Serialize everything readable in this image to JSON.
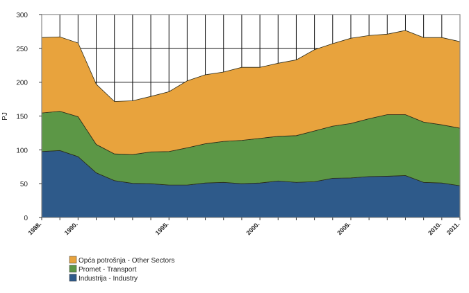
{
  "chart_data": {
    "type": "area",
    "stacked": true,
    "title": "",
    "xlabel": "",
    "ylabel": "PJ",
    "ylim": [
      0,
      300
    ],
    "yticks": [
      0,
      50,
      100,
      150,
      200,
      250,
      300
    ],
    "grid": true,
    "legend_position": "bottom-left",
    "x": [
      1988,
      1989,
      1990,
      1991,
      1992,
      1993,
      1994,
      1995,
      1996,
      1997,
      1998,
      1999,
      2000,
      2001,
      2002,
      2003,
      2004,
      2005,
      2006,
      2007,
      2008,
      2009,
      2010,
      2011
    ],
    "xtick_labels": [
      {
        "year": 1988,
        "label": "1988."
      },
      {
        "year": 1990,
        "label": "1990."
      },
      {
        "year": 1995,
        "label": "1995."
      },
      {
        "year": 2000,
        "label": "2000."
      },
      {
        "year": 2005,
        "label": "2005."
      },
      {
        "year": 2010,
        "label": "2010."
      },
      {
        "year": 2011,
        "label": "2011."
      }
    ],
    "series": [
      {
        "name": "Industrija - Industry",
        "color": "#2E5A8A",
        "values": [
          97.5,
          99,
          90,
          66,
          54.5,
          50.5,
          50,
          48,
          48,
          51,
          52,
          50,
          51,
          54,
          52,
          53,
          58,
          58.5,
          60.5,
          61,
          62,
          52,
          51,
          47
        ]
      },
      {
        "name": "Promet - Transport",
        "color": "#5C9746",
        "values": [
          57,
          58,
          59,
          42,
          39.5,
          42.5,
          47,
          49.5,
          55,
          58,
          60.5,
          64,
          66,
          66,
          69,
          75,
          77,
          80.5,
          85.5,
          91,
          90,
          89,
          86,
          85
        ]
      },
      {
        "name": "Opća potrošnja - Other Sectors",
        "color": "#E8A33D",
        "values": [
          111.5,
          110,
          109,
          89,
          77.5,
          79.5,
          82,
          88.5,
          99,
          102,
          102.5,
          108,
          105,
          108,
          112,
          120,
          122,
          126,
          123,
          119,
          124.5,
          125,
          129,
          128
        ]
      }
    ],
    "legend_order": [
      2,
      1,
      0
    ]
  }
}
